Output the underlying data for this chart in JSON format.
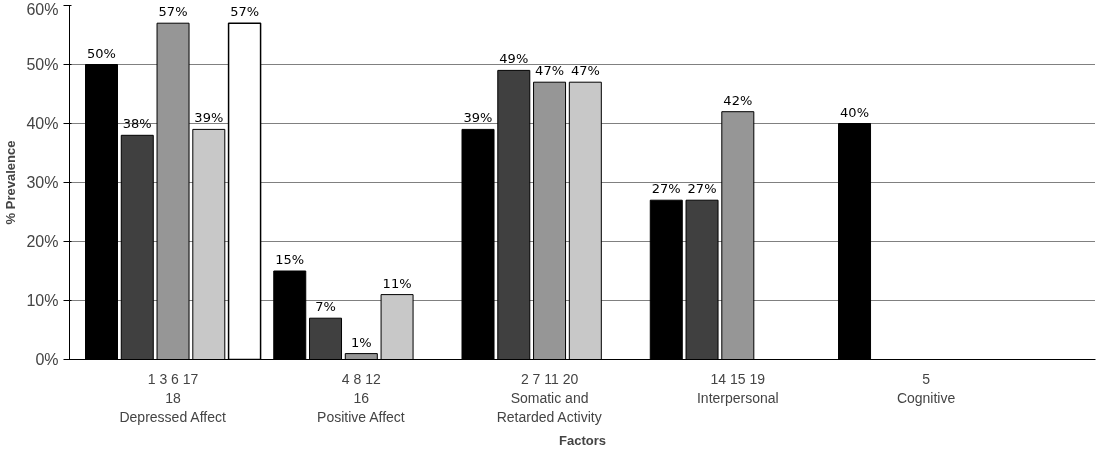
{
  "chart_data": {
    "type": "bar",
    "xlabel": "Factors",
    "ylabel": "% Prevalence",
    "categories": [
      "1 3 6 17\n18\nDepressed Affect",
      "4 8 12\n16\nPositive Affect",
      "2 7 11 20\nSomatic and\nRetarded Activity",
      "14 15 19\nInterpersonal",
      "5\nCognitive"
    ],
    "series": [
      {
        "color": "#000000",
        "values": [
          50,
          15,
          39,
          27,
          40
        ],
        "value_labels": [
          "50%",
          "15%",
          "39%",
          "27%",
          "40%"
        ]
      },
      {
        "color": "#404040",
        "values": [
          38,
          7,
          49,
          27,
          null
        ],
        "value_labels": [
          "38%",
          "7%",
          "49%",
          "27%",
          null
        ]
      },
      {
        "color": "#969696",
        "values": [
          57,
          1,
          47,
          42,
          null
        ],
        "value_labels": [
          "57%",
          "1%",
          "47%",
          "42%",
          null
        ]
      },
      {
        "color": "#c8c8c8",
        "values": [
          39,
          11,
          47,
          null,
          null
        ],
        "value_labels": [
          "39%",
          "11%",
          "47%",
          null,
          null
        ]
      },
      {
        "color": "#ffffff",
        "values": [
          57,
          null,
          null,
          null,
          null
        ],
        "value_labels": [
          "57%",
          null,
          null,
          null,
          null
        ]
      }
    ],
    "ylim": [
      0,
      60
    ],
    "yticks": [
      {
        "value": 0,
        "label": "0%"
      },
      {
        "value": 10,
        "label": "10%"
      },
      {
        "value": 20,
        "label": "20%"
      },
      {
        "value": 30,
        "label": "30%"
      },
      {
        "value": 40,
        "label": "40%"
      },
      {
        "value": 50,
        "label": "50%"
      },
      {
        "value": 60,
        "label": "60%"
      }
    ],
    "grid": "y"
  }
}
